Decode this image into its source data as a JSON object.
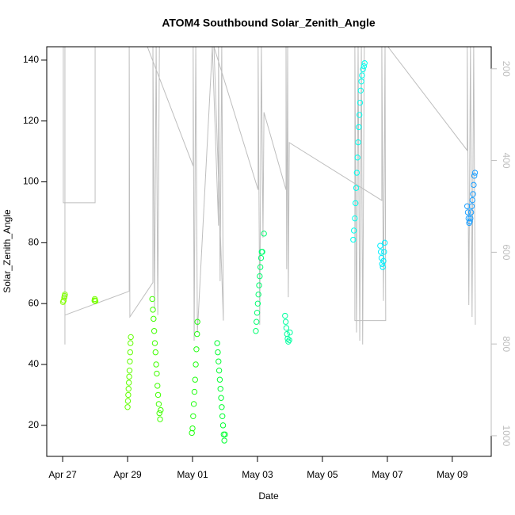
{
  "chart_data": {
    "type": "scatter",
    "title": "ATOM4 Southbound Solar_Zenith_Angle",
    "x_label": "Date",
    "y_label": "Solar_Zenith_Angle",
    "xlim": [
      -0.49,
      13.2
    ],
    "xticks": [
      {
        "value": 0,
        "label": "Apr 27"
      },
      {
        "value": 2,
        "label": "Apr 29"
      },
      {
        "value": 4,
        "label": "May 01"
      },
      {
        "value": 6,
        "label": "May 03"
      },
      {
        "value": 8,
        "label": "May 05"
      },
      {
        "value": 10,
        "label": "May 07"
      },
      {
        "value": 12,
        "label": "May 09"
      }
    ],
    "ylim": [
      9.8,
      144.4
    ],
    "yticks": [
      20,
      40,
      60,
      80,
      100,
      120,
      140
    ],
    "y2lim": [
      1045,
      152
    ],
    "y2ticks": [
      200,
      400,
      600,
      800,
      1000
    ],
    "y2_color": "#bebebe",
    "series": [
      {
        "color": "#80ff00",
        "x": [
          0.01,
          0.03,
          0.05,
          0.06,
          0.07
        ],
        "values": [
          60.5,
          61,
          62,
          62.5,
          63
        ]
      },
      {
        "color": "#78ff00",
        "x": [
          0.98,
          0.99,
          1.0,
          1.01
        ],
        "values": [
          61,
          61.5,
          61,
          60.8
        ]
      },
      {
        "color": "#60ff00",
        "x": [
          2.0,
          2.01,
          2.02,
          2.03,
          2.04,
          2.05,
          2.06,
          2.07,
          2.08,
          2.09,
          2.1
        ],
        "values": [
          26,
          28,
          30,
          32,
          34,
          36,
          38,
          41,
          44,
          47,
          49
        ]
      },
      {
        "color": "#40ff00",
        "x": [
          2.76,
          2.78,
          2.8,
          2.82,
          2.84,
          2.86,
          2.88,
          2.9,
          2.92,
          2.94,
          2.96,
          2.98,
          3.0,
          3.02
        ],
        "values": [
          61.5,
          58,
          55,
          51,
          47,
          44,
          40,
          37,
          33,
          30,
          27,
          24,
          22,
          25
        ]
      },
      {
        "color": "#20ff10",
        "x": [
          3.98,
          4.0,
          4.02,
          4.04,
          4.06,
          4.08,
          4.1,
          4.12,
          4.14,
          4.15
        ],
        "values": [
          17.5,
          19,
          23,
          27,
          31,
          35,
          40,
          45,
          50,
          54
        ]
      },
      {
        "color": "#00ff30",
        "x": [
          4.76,
          4.78,
          4.8,
          4.82,
          4.84,
          4.86,
          4.88,
          4.9,
          4.92,
          4.94,
          4.96,
          4.98,
          5.0
        ],
        "values": [
          47,
          44,
          41,
          38,
          35,
          32,
          29,
          26,
          23,
          20,
          17,
          15,
          17
        ]
      },
      {
        "color": "#00ff70",
        "x": [
          5.95,
          5.97,
          5.99,
          6.01,
          6.03,
          6.05,
          6.07,
          6.09,
          6.11,
          6.13,
          6.15,
          6.2
        ],
        "values": [
          51,
          54,
          57,
          60,
          63,
          66,
          69,
          72,
          75,
          77,
          77,
          83
        ]
      },
      {
        "color": "#00ffa0",
        "x": [
          6.85,
          6.87,
          6.89,
          6.91,
          6.93,
          6.95,
          6.98,
          7.0
        ],
        "values": [
          56,
          54,
          52,
          50,
          48.5,
          47.5,
          48,
          50.5
        ]
      },
      {
        "color": "#00ffee",
        "x": [
          8.95,
          8.97,
          9.0,
          9.02,
          9.04,
          9.06,
          9.08,
          9.1,
          9.12,
          9.14,
          9.16,
          9.18,
          9.2,
          9.22,
          9.25,
          9.28,
          9.3
        ],
        "values": [
          81,
          84,
          88,
          93,
          98,
          103,
          108,
          113,
          118,
          122,
          126,
          130,
          133,
          135,
          137,
          138,
          139
        ]
      },
      {
        "color": "#00f0ff",
        "x": [
          9.78,
          9.8,
          9.82,
          9.84,
          9.86,
          9.88,
          9.9,
          9.92
        ],
        "values": [
          79,
          77,
          75,
          73,
          72,
          74,
          77,
          80
        ]
      },
      {
        "color": "#1ea0ff",
        "x": [
          12.46,
          12.48,
          12.5,
          12.52,
          12.54,
          12.56,
          12.58,
          12.6,
          12.62,
          12.64,
          12.66,
          12.68,
          12.7
        ],
        "values": [
          92,
          90,
          88,
          86.5,
          87,
          88,
          90,
          92,
          94,
          96,
          99,
          102,
          103
        ]
      },
      {
        "type": "line",
        "axis": "y2",
        "color": "#bebebe",
        "x": [
          0.02,
          0.02,
          1.0,
          1.0,
          0.07,
          0.07,
          0.07,
          2.05,
          2.05,
          2.07,
          2.78,
          2.78,
          2.83,
          2.88,
          2.93,
          2.98,
          2.61,
          4.02,
          4.02,
          4.05,
          4.1,
          4.15,
          4.61,
          4.8,
          4.8,
          4.85,
          4.9,
          4.95,
          4.66,
          6.02,
          6.02,
          6.07,
          6.12,
          6.17,
          6.2,
          6.88,
          6.88,
          6.9,
          6.93,
          6.95,
          6.98,
          9.83,
          9.83,
          9.88,
          9.93,
          9.95,
          9.0,
          9.0,
          9.05,
          9.1,
          9.15,
          9.2,
          9.24,
          9.29,
          10.02,
          12.46,
          12.46,
          12.51,
          12.56,
          12.61,
          12.66,
          12.71
        ],
        "values": [
          152,
          492,
          492,
          152,
          152,
          801,
          737,
          685,
          152,
          741,
          666,
          152,
          723,
          152,
          737,
          152,
          152,
          412,
          152,
          793,
          152,
          775,
          152,
          542,
          152,
          663,
          152,
          749,
          152,
          464,
          152,
          758,
          152,
          568,
          295,
          464,
          152,
          637,
          152,
          698,
          361,
          487,
          152,
          706,
          152,
          749,
          749,
          152,
          775,
          152,
          793,
          152,
          801,
          152,
          152,
          378,
          152,
          715,
          152,
          741,
          152,
          758
        ]
      }
    ]
  }
}
